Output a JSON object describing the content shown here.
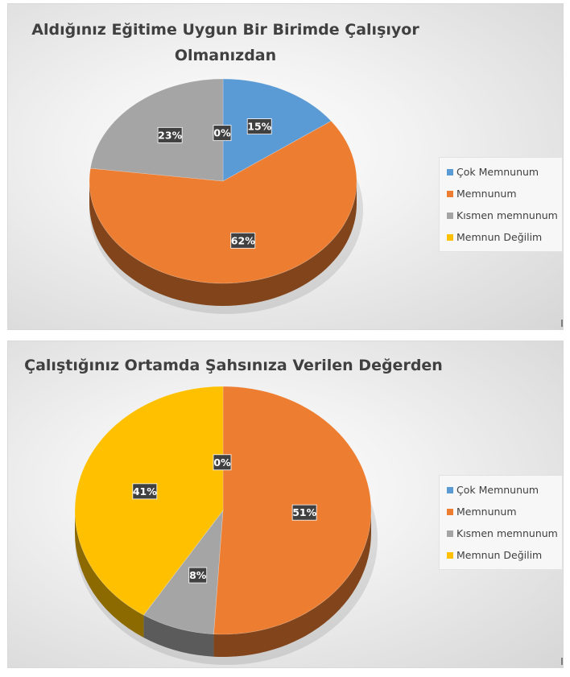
{
  "colors": {
    "cok_memnunum": "#5b9bd5",
    "memnunum": "#ed7d31",
    "kismen_memnunum": "#a5a5a5",
    "memnun_degilim": "#ffc000",
    "label_bg": "#404040",
    "label_text": "#ffffff"
  },
  "chart_data": [
    {
      "type": "pie",
      "title": "Aldığınız Eğitime Uygun Bir Birimde Çalışıyor Olmanızdan",
      "title_lines": [
        "Aldığınız Eğitime Uygun Bir Birimde Çalışıyor",
        "Olmanızdan"
      ],
      "style": "3d",
      "legend_position": "right",
      "categories": [
        "Çok Memnunum",
        "Memnunum",
        "Kısmen memnunum",
        "Memnun Değilim"
      ],
      "values": [
        15,
        62,
        23,
        0
      ],
      "data_labels": [
        "15%",
        "62%",
        "23%",
        "0%"
      ]
    },
    {
      "type": "pie",
      "title": "Çalıştığınız Ortamda Şahsınıza Verilen Değerden",
      "title_lines": [
        "Çalıştığınız Ortamda Şahsınıza Verilen Değerden"
      ],
      "style": "3d",
      "legend_position": "right",
      "categories": [
        "Çok Memnunum",
        "Memnunum",
        "Kısmen memnunum",
        "Memnun Değilim"
      ],
      "values": [
        0,
        51,
        8,
        41
      ],
      "data_labels": [
        "0%",
        "51%",
        "8%",
        "41%"
      ]
    }
  ]
}
